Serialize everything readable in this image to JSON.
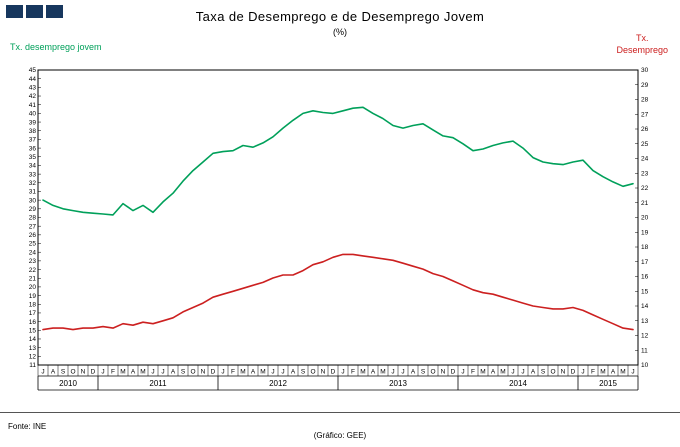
{
  "header": {
    "title": "Taxa de Desemprego e de Desemprego Jovem",
    "subtitle": "(%)",
    "left_axis_label": "Tx. desemprego jovem",
    "right_axis_label": {
      "line1": "Tx.",
      "line2": "Desemprego"
    }
  },
  "footer": {
    "source": "Fonte: INE",
    "credit": "(Gráfico: GEE)"
  },
  "colors": {
    "youth_line": "#00A05A",
    "unemployment_line": "#CC2020",
    "logo_square": "#17375E",
    "axis": "#000000"
  },
  "chart_data": {
    "type": "line",
    "title": "Taxa de Desemprego e de Desemprego Jovem",
    "subtitle": "(%)",
    "grid": false,
    "legend": "colored axis titles (green = youth left axis, red = total right axis)",
    "x_tick_labels": [
      "J",
      "A",
      "S",
      "O",
      "N",
      "D",
      "J",
      "F",
      "M",
      "A",
      "M",
      "J",
      "J",
      "A",
      "S",
      "O",
      "N",
      "D",
      "J",
      "F",
      "M",
      "A",
      "M",
      "J",
      "J",
      "A",
      "S",
      "O",
      "N",
      "D",
      "J",
      "F",
      "M",
      "A",
      "M",
      "J",
      "J",
      "A",
      "S",
      "O",
      "N",
      "D",
      "J",
      "F",
      "M",
      "A",
      "M",
      "J",
      "J",
      "A",
      "S",
      "O",
      "N",
      "D",
      "J",
      "F",
      "M",
      "A",
      "M",
      "J"
    ],
    "year_groups": [
      {
        "label": "2010",
        "months": 6
      },
      {
        "label": "2011",
        "months": 12
      },
      {
        "label": "2012",
        "months": 12
      },
      {
        "label": "2013",
        "months": 12
      },
      {
        "label": "2014",
        "months": 12
      },
      {
        "label": "2015",
        "months": 6
      }
    ],
    "left_axis": {
      "label": "Tx. desemprego jovem",
      "min": 11,
      "max": 45,
      "step": 1
    },
    "right_axis": {
      "label": "Tx. Desemprego",
      "min": 10,
      "max": 30,
      "step": 1
    },
    "series": [
      {
        "name": "Tx. desemprego jovem",
        "axis": "left",
        "color": "#00A05A",
        "values": [
          30.0,
          29.4,
          29.0,
          28.8,
          28.6,
          28.5,
          28.4,
          28.3,
          29.6,
          28.8,
          29.4,
          28.6,
          29.8,
          30.8,
          32.2,
          33.4,
          34.4,
          35.4,
          35.6,
          35.7,
          36.3,
          36.1,
          36.6,
          37.3,
          38.3,
          39.2,
          40.0,
          40.3,
          40.1,
          40.0,
          40.3,
          40.6,
          40.7,
          40.0,
          39.4,
          38.6,
          38.3,
          38.6,
          38.8,
          38.1,
          37.4,
          37.2,
          36.5,
          35.7,
          35.9,
          36.3,
          36.6,
          36.8,
          36.0,
          34.9,
          34.4,
          34.2,
          34.1,
          34.4,
          34.6,
          33.4,
          32.7,
          32.1,
          31.6,
          31.9
        ]
      },
      {
        "name": "Tx. Desemprego",
        "axis": "right",
        "color": "#CC2020",
        "values": [
          12.4,
          12.5,
          12.5,
          12.4,
          12.5,
          12.5,
          12.6,
          12.5,
          12.8,
          12.7,
          12.9,
          12.8,
          13.0,
          13.2,
          13.6,
          13.9,
          14.2,
          14.6,
          14.8,
          15.0,
          15.2,
          15.4,
          15.6,
          15.9,
          16.1,
          16.1,
          16.4,
          16.8,
          17.0,
          17.3,
          17.5,
          17.5,
          17.4,
          17.3,
          17.2,
          17.1,
          16.9,
          16.7,
          16.5,
          16.2,
          16.0,
          15.7,
          15.4,
          15.1,
          14.9,
          14.8,
          14.6,
          14.4,
          14.2,
          14.0,
          13.9,
          13.8,
          13.8,
          13.9,
          13.7,
          13.4,
          13.1,
          12.8,
          12.5,
          12.4
        ]
      }
    ]
  }
}
